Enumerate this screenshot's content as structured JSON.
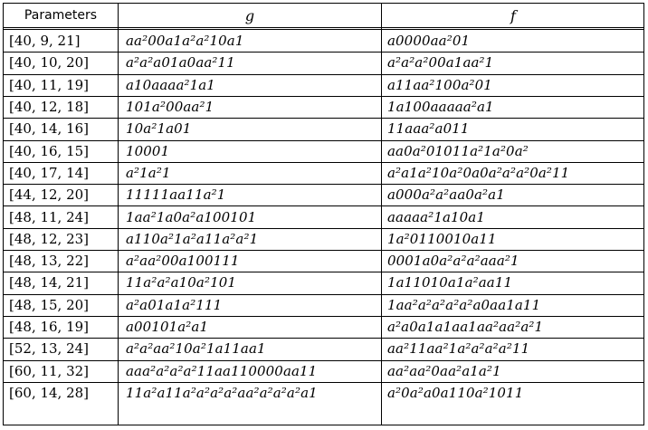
{
  "table": {
    "headers": [
      "Parameters",
      "g",
      "f"
    ],
    "rows": [
      {
        "params": "[40, 9, 21]",
        "g": "aa²00a1a²a²10a1",
        "f": "a0000aa²01"
      },
      {
        "params": "[40, 10, 20]",
        "g": "a²a²a01a0aa²11",
        "f": "a²a²a²00a1aa²1"
      },
      {
        "params": "[40, 11, 19]",
        "g": "a10aaaa²1a1",
        "f": "a11aa²100a²01"
      },
      {
        "params": "[40, 12, 18]",
        "g": "101a²00aa²1",
        "f": "1a100aaaaa²a1"
      },
      {
        "params": "[40, 14, 16]",
        "g": "10a²1a01",
        "f": "11aaa²a011"
      },
      {
        "params": "[40, 16, 15]",
        "g": "10001",
        "f": "aa0a²01011a²1a²0a²"
      },
      {
        "params": "[40, 17, 14]",
        "g": "a²1a²1",
        "f": "a²a1a²10a²0a0a²a²a²0a²11"
      },
      {
        "params": "[44, 12, 20]",
        "g": "11111aa11a²1",
        "f": "a000a²a²aa0a²a1"
      },
      {
        "params": "[48, 11, 24]",
        "g": "1aa²1a0a²a100101",
        "f": "aaaaa²1a10a1"
      },
      {
        "params": "[48, 12, 23]",
        "g": "a110a²1a²a11a²a²1",
        "f": "1a²0110010a11"
      },
      {
        "params": "[48, 13, 22]",
        "g": "a²aa²00a100111",
        "f": "0001a0a²a²a²aaa²1"
      },
      {
        "params": "[48, 14, 21]",
        "g": "11a²a²a10a²101",
        "f": "1a11010a1a²aa11"
      },
      {
        "params": "[48, 15, 20]",
        "g": "a²a01a1a²111",
        "f": "1aa²a²a²a²a²a0aa1a11"
      },
      {
        "params": "[48, 16, 19]",
        "g": "a00101a²a1",
        "f": "a²a0a1a1aa1aa²aa²a²1"
      },
      {
        "params": "[52, 13, 24]",
        "g": "a²a²aa²10a²1a11aa1",
        "f": "aa²11aa²1a²a²a²a²11"
      },
      {
        "params": "[60, 11, 32]",
        "g": "aaa²a²a²a²11aa110000aa11",
        "f": "aa²aa²0aa²a1a²1"
      },
      {
        "params": "[60, 14, 28]",
        "g": "11a²a11a²a²a²a²aa²a²a²a²a1",
        "f": "a²0a²a0a110a²1011"
      }
    ]
  }
}
